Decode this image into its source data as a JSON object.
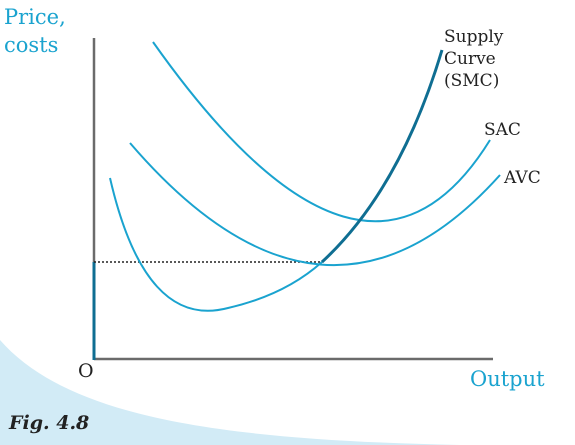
{
  "figure": {
    "y_axis_title": [
      "Price,",
      "costs"
    ],
    "x_axis_title": "Output",
    "origin_label": "O",
    "caption": "Fig. 4.8",
    "curves": {
      "smc": {
        "label": [
          "Supply",
          "Curve",
          "(SMC)"
        ]
      },
      "sac": {
        "label": "SAC"
      },
      "avc": {
        "label": "AVC"
      }
    },
    "colors": {
      "curve": "#1aa3cf",
      "supply_curve": "#0f6e92",
      "axis": "#6b6b6b",
      "axis_title": "#1aa3cf",
      "background_swoosh": "#d2ebf6"
    }
  }
}
